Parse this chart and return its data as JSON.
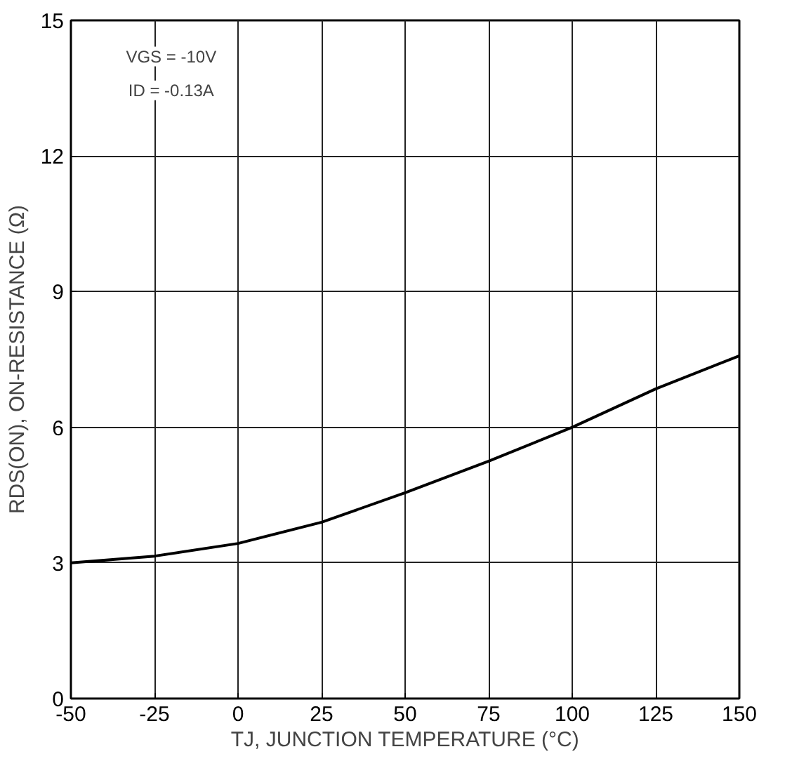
{
  "chart_data": {
    "type": "line",
    "xlabel": "TJ, JUNCTION TEMPERATURE (°C)",
    "ylabel": "RDS(ON), ON-RESISTANCE (Ω)",
    "annotations": [
      "VGS = -10V",
      "ID = -0.13A"
    ],
    "x": [
      -50,
      -25,
      0,
      25,
      50,
      75,
      100,
      125,
      150
    ],
    "series": [
      {
        "color": "#000000",
        "values": [
          3.0,
          3.15,
          3.43,
          3.9,
          4.55,
          5.25,
          6.0,
          6.85,
          7.58
        ]
      }
    ],
    "xlim": [
      -50,
      150
    ],
    "xticks": [
      -50,
      -25,
      0,
      25,
      50,
      75,
      100,
      125,
      150
    ],
    "ylim": [
      0,
      15
    ],
    "yticks": [
      0,
      3,
      6,
      9,
      12,
      15
    ],
    "grid": true,
    "marker": "none",
    "line_style": "solid"
  }
}
